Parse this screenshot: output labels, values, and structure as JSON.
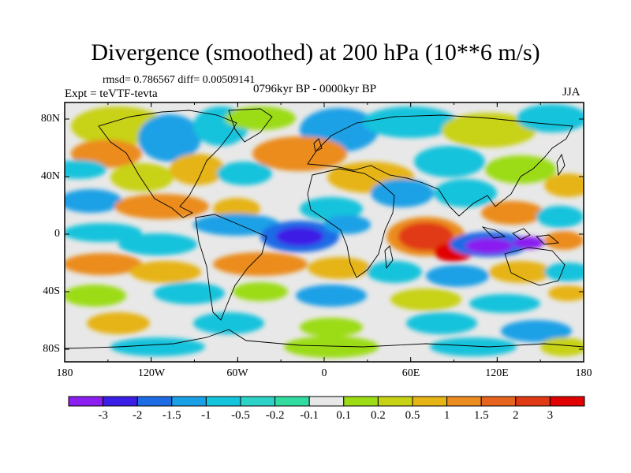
{
  "title": "Divergence (smoothed) at 200 hPa (10**6 m/s)",
  "stats_text": "rmsd= 0.786567 diff= 0.00509141",
  "experiment": "Expt = teVTF-tevta",
  "period": "0796kyr BP - 0000kyr BP",
  "season": "JJA",
  "lat_labels": [
    "80N",
    "40N",
    "0",
    "40S",
    "80S"
  ],
  "lon_labels": [
    "180",
    "120W",
    "60W",
    "0",
    "60E",
    "120E",
    "180"
  ],
  "colorbar": {
    "labels": [
      "-3",
      "-2",
      "-1.5",
      "-1",
      "-0.5",
      "-0.2",
      "-0.1",
      "0.1",
      "0.2",
      "0.5",
      "1",
      "1.5",
      "2",
      "3"
    ],
    "colors": [
      "#8a1ff0",
      "#3c1fe6",
      "#1e6be6",
      "#1aa0e6",
      "#14c3dc",
      "#2dd2c8",
      "#32dca0",
      "#e8e8e8",
      "#9bdc14",
      "#c8d214",
      "#e6b414",
      "#eb8c1e",
      "#e6641e",
      "#e03a14",
      "#e00000"
    ]
  }
}
